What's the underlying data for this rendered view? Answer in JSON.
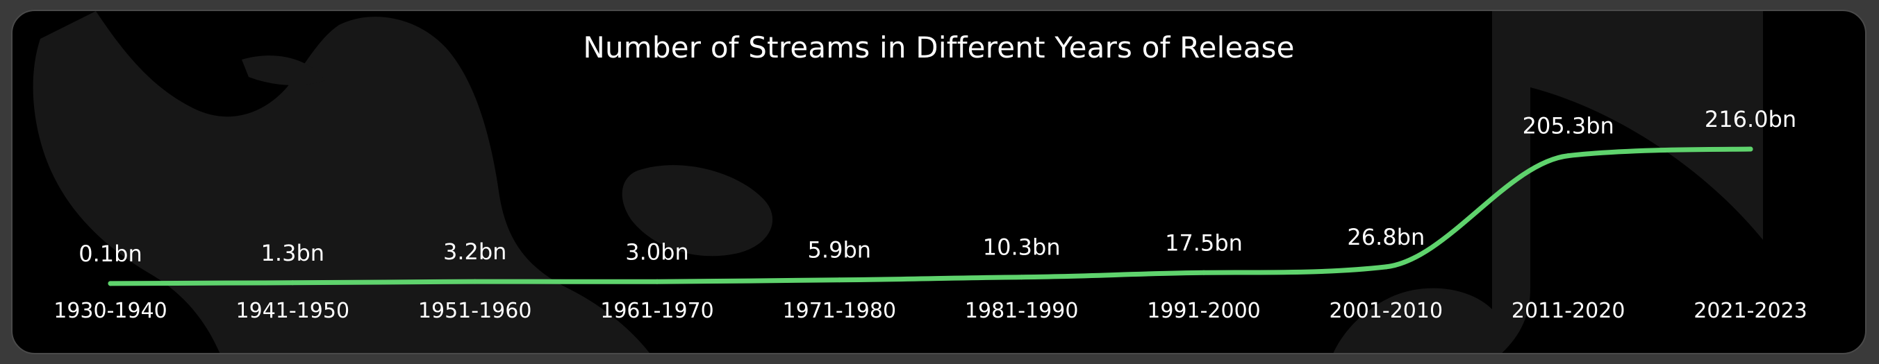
{
  "chart_data": {
    "type": "line",
    "title": "Number of Streams in Different Years of Release",
    "xlabel": "",
    "ylabel": "",
    "categories": [
      "1930-1940",
      "1941-1950",
      "1951-1960",
      "1961-1970",
      "1971-1980",
      "1981-1990",
      "1991-2000",
      "2001-2010",
      "2011-2020",
      "2021-2023"
    ],
    "values": [
      0.1,
      1.3,
      3.2,
      3.0,
      5.9,
      10.3,
      17.5,
      26.8,
      205.3,
      216.0
    ],
    "data_labels": [
      "0.1bn",
      "1.3bn",
      "3.2bn",
      "3.0bn",
      "5.9bn",
      "10.3bn",
      "17.5bn",
      "26.8bn",
      "205.3bn",
      "216.0bn"
    ],
    "unit": "bn",
    "ylim": [
      0,
      216.0
    ],
    "grid": false,
    "legend": "none",
    "colors": {
      "line": "#5fd36d",
      "background": "#000000",
      "text": "#ffffff"
    }
  }
}
